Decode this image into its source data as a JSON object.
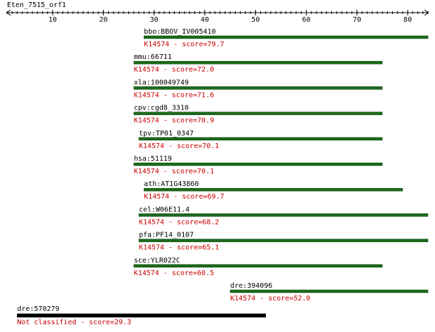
{
  "chart_data": {
    "type": "alignment",
    "title": "Eten_7515_orf1",
    "xlim": [
      1,
      84
    ],
    "xticks": [
      10,
      20,
      30,
      40,
      50,
      60,
      70,
      80
    ],
    "rows": [
      {
        "name": "bbo:BBOV_IV005410",
        "label": "K14574 - score=79.7",
        "start": 28,
        "end": 84,
        "color": "#1a6b1a",
        "label_color": "#cc0000"
      },
      {
        "name": "mmu:66711",
        "label": "K14574 - score=72.0",
        "start": 26,
        "end": 75,
        "color": "#1a6b1a",
        "label_color": "#cc0000"
      },
      {
        "name": "xla:100049749",
        "label": "K14574 - score=71.6",
        "start": 26,
        "end": 75,
        "color": "#1a6b1a",
        "label_color": "#cc0000"
      },
      {
        "name": "cpv:cgd8_3310",
        "label": "K14574 - score=70.9",
        "start": 26,
        "end": 75,
        "color": "#1a6b1a",
        "label_color": "#cc0000"
      },
      {
        "name": "tpv:TP01_0347",
        "label": "K14574 - score=70.1",
        "start": 27,
        "end": 75,
        "color": "#1a6b1a",
        "label_color": "#cc0000"
      },
      {
        "name": "hsa:51119",
        "label": "K14574 - score=70.1",
        "start": 26,
        "end": 75,
        "color": "#1a6b1a",
        "label_color": "#cc0000"
      },
      {
        "name": "ath:AT1G43860",
        "label": "K14574 - score=69.7",
        "start": 28,
        "end": 79,
        "color": "#1a6b1a",
        "label_color": "#cc0000"
      },
      {
        "name": "cel:W06E11.4",
        "label": "K14574 - score=68.2",
        "start": 27,
        "end": 84,
        "color": "#1a6b1a",
        "label_color": "#cc0000"
      },
      {
        "name": "pfa:PF14_0107",
        "label": "K14574 - score=65.1",
        "start": 27,
        "end": 84,
        "color": "#1a6b1a",
        "label_color": "#cc0000"
      },
      {
        "name": "sce:YLR022C",
        "label": "K14574 - score=60.5",
        "start": 26,
        "end": 75,
        "color": "#1a6b1a",
        "label_color": "#cc0000"
      },
      {
        "name": "dre:394096",
        "label": "K14574 - score=52.0",
        "start": 45,
        "end": 84,
        "color": "#1a6b1a",
        "label_color": "#cc0000"
      },
      {
        "name": "dre:570279",
        "label": "Not classified - score=29.3",
        "start": 3,
        "end": 52,
        "color": "#000000",
        "label_color": "#cc0000"
      }
    ]
  }
}
